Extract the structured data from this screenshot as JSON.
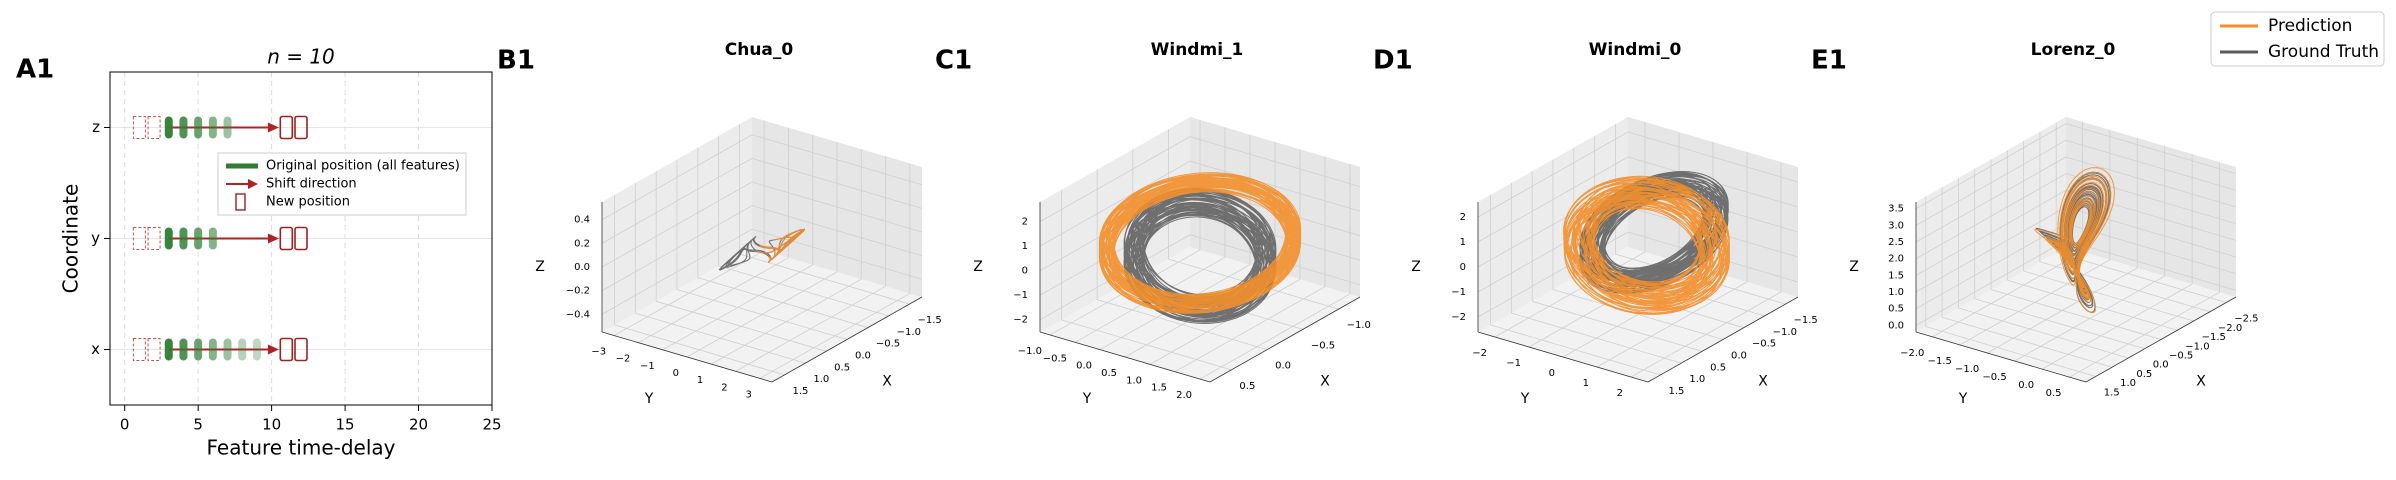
{
  "legend": {
    "series": [
      {
        "name": "Prediction",
        "color": "#f28e2b"
      },
      {
        "name": "Ground Truth",
        "color": "#595959"
      }
    ]
  },
  "chart_data": [
    {
      "type": "strip",
      "panel": "A1",
      "title": "n = 10",
      "xlabel": "Feature time-delay",
      "ylabel": "Coordinate",
      "categories": [
        "x",
        "y",
        "z"
      ],
      "xlim": [
        -1,
        25
      ],
      "xticks": [
        0,
        5,
        10,
        15,
        20,
        25
      ],
      "ylim": [
        -0.5,
        2.5
      ],
      "grid": true,
      "series": [
        {
          "name": "Original position (all features)",
          "color": "#2e7d32",
          "values": [
            [
              3,
              4,
              5,
              6,
              7,
              8,
              9
            ],
            [
              3,
              4,
              5,
              6
            ],
            [
              3,
              4,
              5,
              6,
              7
            ]
          ]
        },
        {
          "name": "Shift direction",
          "color": "#b22222",
          "values": [
            [
              3,
              10.5
            ],
            [
              3,
              10.5
            ],
            [
              3,
              10.5
            ]
          ]
        },
        {
          "name": "New position",
          "color": "#a01f1f",
          "values": [
            [
              11,
              12
            ],
            [
              11,
              12
            ],
            [
              11,
              12
            ]
          ]
        }
      ],
      "shifted_out": {
        "color": "#d05050",
        "values": [
          [
            1,
            2
          ],
          [
            1,
            2
          ],
          [
            1,
            2
          ]
        ]
      }
    },
    {
      "type": "line3d",
      "panel": "B1",
      "title": "Chua_0",
      "system": "chua",
      "xlabel": "X",
      "ylabel": "Y",
      "zlabel": "Z",
      "xlim": [
        -1.8,
        1.8
      ],
      "ylim": [
        -3.5,
        3.5
      ],
      "zlim": [
        -0.55,
        0.55
      ],
      "xticks": [
        {
          "value": 1.5,
          "label": "1.5"
        },
        {
          "value": 1.0,
          "label": "1.0"
        },
        {
          "value": 0.5,
          "label": "0.5"
        },
        {
          "value": 0,
          "label": "0.0"
        },
        {
          "value": -0.5,
          "label": "−0.5"
        },
        {
          "value": -1.0,
          "label": "−1.0"
        },
        {
          "value": -1.5,
          "label": "−1.5"
        }
      ],
      "yticks": [
        {
          "value": -3,
          "label": "−3"
        },
        {
          "value": -2,
          "label": "−2"
        },
        {
          "value": -1,
          "label": "−1"
        },
        0,
        1,
        2,
        3
      ],
      "zticks": [
        0.4,
        0.2,
        {
          "value": 0,
          "label": "0.0"
        },
        {
          "value": -0.2,
          "label": "−0.2"
        },
        {
          "value": -0.4,
          "label": "−0.4"
        }
      ]
    },
    {
      "type": "line3d",
      "panel": "C1",
      "title": "Windmi_1",
      "system": "torus1",
      "xlabel": "X",
      "ylabel": "Y",
      "zlabel": "Z",
      "xlim": [
        -1.3,
        0.8
      ],
      "ylim": [
        -1.2,
        2.2
      ],
      "zlim": [
        -2.5,
        2.8
      ],
      "xticks": [
        0.5,
        {
          "value": 0,
          "label": "0.0"
        },
        {
          "value": -0.5,
          "label": "−0.5"
        },
        {
          "value": -1.0,
          "label": "−1.0"
        }
      ],
      "yticks": [
        {
          "value": -1.0,
          "label": "−1.0"
        },
        {
          "value": -0.5,
          "label": "−0.5"
        },
        {
          "value": 0,
          "label": "0.0"
        },
        0.5,
        {
          "value": 1.0,
          "label": "1.0"
        },
        1.5,
        {
          "value": 2.0,
          "label": "2.0"
        }
      ],
      "zticks": [
        2,
        1,
        0,
        {
          "value": -1,
          "label": "−1"
        },
        {
          "value": -2,
          "label": "−2"
        }
      ]
    },
    {
      "type": "line3d",
      "panel": "D1",
      "title": "Windmi_0",
      "system": "torus0",
      "xlabel": "X",
      "ylabel": "Y",
      "zlabel": "Z",
      "xlim": [
        -1.8,
        1.8
      ],
      "ylim": [
        -2.5,
        2.5
      ],
      "zlim": [
        -2.6,
        2.6
      ],
      "xticks": [
        1.5,
        {
          "value": 1.0,
          "label": "1.0"
        },
        0.5,
        {
          "value": 0,
          "label": "0.0"
        },
        {
          "value": -0.5,
          "label": "−0.5"
        },
        {
          "value": -1.0,
          "label": "−1.0"
        },
        {
          "value": -1.5,
          "label": "−1.5"
        }
      ],
      "yticks": [
        {
          "value": -2,
          "label": "−2"
        },
        {
          "value": -1,
          "label": "−1"
        },
        0,
        1,
        2
      ],
      "zticks": [
        2,
        1,
        0,
        {
          "value": -1,
          "label": "−1"
        },
        {
          "value": -2,
          "label": "−2"
        }
      ]
    },
    {
      "type": "line3d",
      "panel": "E1",
      "title": "Lorenz_0",
      "system": "lorenz",
      "xlabel": "X",
      "ylabel": "Y",
      "zlabel": "Z",
      "xlim": [
        -2.8,
        1.8
      ],
      "ylim": [
        -2.3,
        0.8
      ],
      "zlim": [
        -0.2,
        3.7
      ],
      "xticks": [
        1.5,
        {
          "value": 1.0,
          "label": "1.0"
        },
        0.5,
        {
          "value": 0,
          "label": "0.0"
        },
        {
          "value": -0.5,
          "label": "−0.5"
        },
        {
          "value": -1.0,
          "label": "−1.0"
        },
        {
          "value": -1.5,
          "label": "−1.5"
        },
        {
          "value": -2.0,
          "label": "−2.0"
        },
        {
          "value": -2.5,
          "label": "−2.5"
        }
      ],
      "yticks": [
        {
          "value": -2.0,
          "label": "−2.0"
        },
        {
          "value": -1.5,
          "label": "−1.5"
        },
        {
          "value": -1.0,
          "label": "−1.0"
        },
        {
          "value": -0.5,
          "label": "−0.5"
        },
        {
          "value": 0,
          "label": "0.0"
        },
        0.5
      ],
      "zticks": [
        3.5,
        {
          "value": 3.0,
          "label": "3.0"
        },
        2.5,
        {
          "value": 2.0,
          "label": "2.0"
        },
        1.5,
        {
          "value": 1.0,
          "label": "1.0"
        },
        0.5,
        {
          "value": 0,
          "label": "0.0"
        }
      ]
    }
  ]
}
